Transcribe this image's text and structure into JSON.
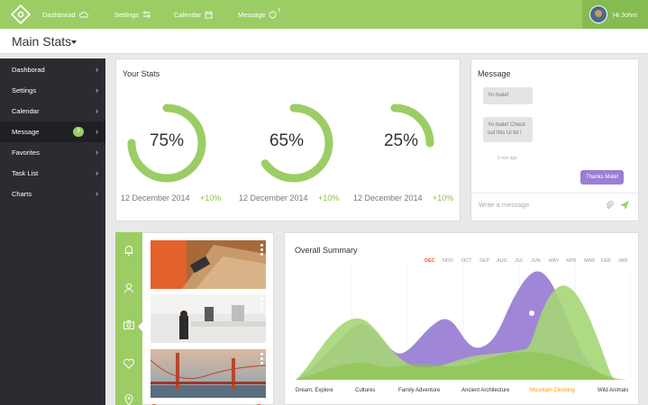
{
  "topbar": {
    "nav": [
      {
        "label": "Dashborad",
        "icon": "cloud-icon"
      },
      {
        "label": "Settings",
        "icon": "sliders-icon"
      },
      {
        "label": "Calendar",
        "icon": "calendar-icon"
      },
      {
        "label": "Message",
        "icon": "chat-icon",
        "count": "5"
      }
    ],
    "user_greeting": "Hi John!"
  },
  "page": {
    "title": "Main Stats"
  },
  "sidebar": {
    "items": [
      {
        "label": "Dashborad"
      },
      {
        "label": "Settings"
      },
      {
        "label": "Calendar"
      },
      {
        "label": "Message",
        "badge": "3",
        "active": true
      },
      {
        "label": "Favorites"
      },
      {
        "label": "Task List"
      },
      {
        "label": "Charts"
      }
    ]
  },
  "stats": {
    "title": "Your Stats",
    "gauges": [
      {
        "value": "75%",
        "percent": 75,
        "date": "12 December 2014",
        "change": "+10%"
      },
      {
        "value": "65%",
        "percent": 65,
        "date": "12 December 2014",
        "change": "+10%"
      },
      {
        "value": "25%",
        "percent": 25,
        "date": "12 December 2014",
        "change": "+10%"
      }
    ]
  },
  "message": {
    "title": "Message",
    "incoming": [
      "Yo mate!",
      "Yo mate! Check out this Ui kit !"
    ],
    "time": "5 min ago",
    "outgoing": "Thanks Mate!",
    "input_placeholder": "Write a message"
  },
  "icon_strip": [
    "bell-icon",
    "user-icon",
    "camera-icon",
    "heart-icon",
    "location-icon"
  ],
  "summary": {
    "title": "Overall Summary",
    "months": [
      "DEC",
      "NOV",
      "OCT",
      "SEP",
      "AUG",
      "JUL",
      "JUN",
      "MAY",
      "APR",
      "MAR",
      "FEB",
      "JAN"
    ],
    "active_month": "DEC",
    "series": [
      "Dream, Explore",
      "Cultures",
      "Family Adventure",
      "Ancient Architecture",
      "Mountain Climbing",
      "Wild Animals"
    ],
    "active_series": "Mountain Climbing"
  },
  "colors": {
    "green": "#9ccd65",
    "purple": "#9b7fd4",
    "dark": "#2b2c32",
    "orange": "#ff9800"
  }
}
